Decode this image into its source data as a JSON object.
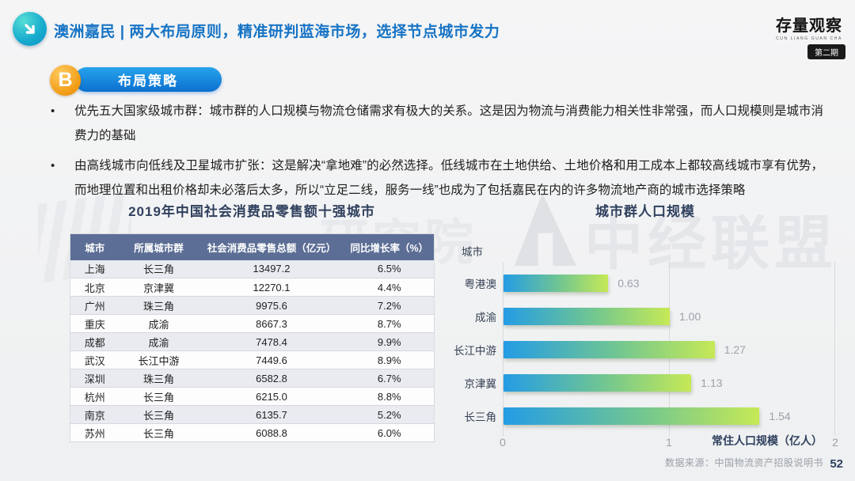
{
  "header": {
    "title": "澳洲嘉民 | 两大布局原则，精准研判蓝海市场，选择节点城市发力",
    "brand_name": "存量观察",
    "brand_sub": "CUN LIANG GUAN CHA",
    "brand_issue": "第二期"
  },
  "section": {
    "badge": "B",
    "label": "布局策略"
  },
  "bullets": [
    "优先五大国家级城市群：城市群的人口规模与物流仓储需求有极大的关系。这是因为物流与消费能力相关性非常强，而人口规模则是城市消费力的基础",
    "由高线城市向低线及卫星城市扩张：这是解决“拿地难”的必然选择。低线城市在土地供给、土地价格和用工成本上都较高线城市享有优势，而地理位置和出租价格却未必落后太多，所以“立足二线，服务一线”也成为了包括嘉民在内的许多物流地产商的城市选择策略"
  ],
  "table": {
    "title": "2019年中国社会消费品零售额十强城市",
    "headers": [
      "城市",
      "所属城市群",
      "社会消费品零售总额（亿元）",
      "同比增长率（%）"
    ],
    "rows": [
      [
        "上海",
        "长三角",
        "13497.2",
        "6.5%"
      ],
      [
        "北京",
        "京津冀",
        "12270.1",
        "4.4%"
      ],
      [
        "广州",
        "珠三角",
        "9975.6",
        "7.2%"
      ],
      [
        "重庆",
        "成渝",
        "8667.3",
        "8.7%"
      ],
      [
        "成都",
        "成渝",
        "7478.4",
        "9.9%"
      ],
      [
        "武汉",
        "长江中游",
        "7449.6",
        "8.9%"
      ],
      [
        "深圳",
        "珠三角",
        "6582.8",
        "6.7%"
      ],
      [
        "杭州",
        "长三角",
        "6215.0",
        "8.8%"
      ],
      [
        "南京",
        "长三角",
        "6135.7",
        "5.2%"
      ],
      [
        "苏州",
        "长三角",
        "6088.8",
        "6.0%"
      ]
    ]
  },
  "chart_data": {
    "type": "bar",
    "orientation": "horizontal",
    "title": "城市群人口规模",
    "ylabel": "城市",
    "xlabel": "常住人口规模（亿人）",
    "categories": [
      "粤港澳",
      "成渝",
      "长江中游",
      "京津冀",
      "长三角"
    ],
    "values": [
      0.63,
      1.0,
      1.27,
      1.13,
      1.54
    ],
    "value_labels": [
      "0.63",
      "1.00",
      "1.27",
      "1.13",
      "1.54"
    ],
    "xlim": [
      0,
      2
    ],
    "xticks": [
      "0",
      "1",
      "2"
    ],
    "grid": true,
    "legend": false,
    "bar_gradient": [
      "#249ce5",
      "#c6e956"
    ]
  },
  "footer": {
    "source": "数据来源：中国物流资产招股说明书",
    "page": "52"
  },
  "watermarks": {
    "left_text": "研究院",
    "right_text": "中经联盟"
  },
  "colors": {
    "title_blue": "#1774c5",
    "pill_blue": "#1386e0",
    "badge_orange": "#f09a12",
    "table_header_bg": "#5c6e95",
    "heading_navy": "#30415e",
    "icon_teal": "#14aacd"
  }
}
